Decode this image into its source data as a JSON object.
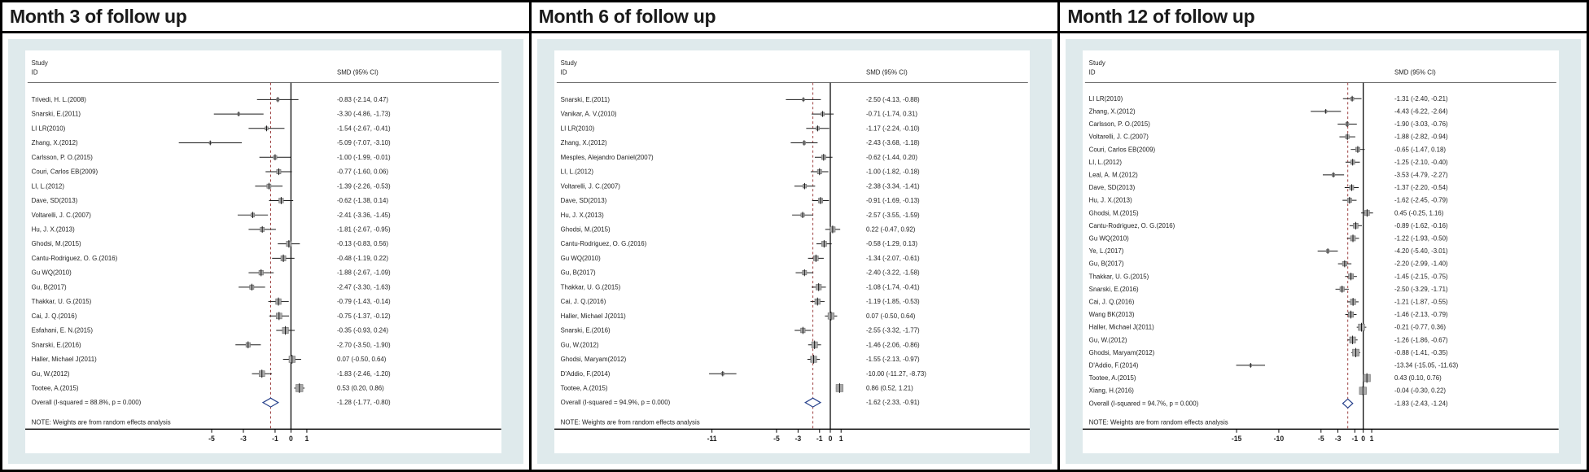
{
  "colors": {
    "panel_bg": "#dfeaec",
    "plot_bg": "#ffffff",
    "marker_fill": "#a9a9a9",
    "marker_edge": "#6f6f6f",
    "ci_line": "#1a1a1a",
    "null_line": "#000000",
    "overall_dash": "#9b3b3b",
    "diamond": "#26408b",
    "text": "#1f1f1f",
    "border": "#000000"
  },
  "chart_data": [
    {
      "type": "scatter",
      "subtype": "forest_plot",
      "title": "Month 3 of follow up",
      "col_headers": {
        "study_line1": "Study",
        "study_line2": "ID",
        "effect": "SMD (95% CI)"
      },
      "note": "NOTE: Weights are from random effects analysis",
      "xlabel": "",
      "xlim": [
        -7.9,
        2.0
      ],
      "xticks": [
        -5,
        -3,
        -1,
        0,
        1
      ],
      "null_line": 0,
      "overall_line": -1.28,
      "studies": [
        {
          "id": "Trivedi, H. L.(2008)",
          "smd": -0.83,
          "ci": [
            -2.14,
            0.47
          ],
          "label": "-0.83 (-2.14, 0.47)"
        },
        {
          "id": "Snarski, E.(2011)",
          "smd": -3.3,
          "ci": [
            -4.86,
            -1.73
          ],
          "label": "-3.30 (-4.86, -1.73)"
        },
        {
          "id": "LI LR(2010)",
          "smd": -1.54,
          "ci": [
            -2.67,
            -0.41
          ],
          "label": "-1.54 (-2.67, -0.41)"
        },
        {
          "id": "Zhang, X.(2012)",
          "smd": -5.09,
          "ci": [
            -7.07,
            -3.1
          ],
          "label": "-5.09 (-7.07, -3.10)"
        },
        {
          "id": "Carlsson, P. O.(2015)",
          "smd": -1.0,
          "ci": [
            -1.99,
            -0.01
          ],
          "label": "-1.00 (-1.99, -0.01)"
        },
        {
          "id": "Couri, Carlos EB(2009)",
          "smd": -0.77,
          "ci": [
            -1.6,
            0.06
          ],
          "label": "-0.77 (-1.60, 0.06)"
        },
        {
          "id": "LI, L.(2012)",
          "smd": -1.39,
          "ci": [
            -2.26,
            -0.53
          ],
          "label": "-1.39 (-2.26, -0.53)"
        },
        {
          "id": "Dave, SD(2013)",
          "smd": -0.62,
          "ci": [
            -1.38,
            0.14
          ],
          "label": "-0.62 (-1.38, 0.14)"
        },
        {
          "id": "Voltarelli, J. C.(2007)",
          "smd": -2.41,
          "ci": [
            -3.36,
            -1.45
          ],
          "label": "-2.41 (-3.36, -1.45)"
        },
        {
          "id": "Hu, J. X.(2013)",
          "smd": -1.81,
          "ci": [
            -2.67,
            -0.95
          ],
          "label": "-1.81 (-2.67, -0.95)"
        },
        {
          "id": "Ghodsi, M.(2015)",
          "smd": -0.13,
          "ci": [
            -0.83,
            0.56
          ],
          "label": "-0.13 (-0.83, 0.56)"
        },
        {
          "id": "Cantu-Rodriguez, O. G.(2016)",
          "smd": -0.48,
          "ci": [
            -1.19,
            0.22
          ],
          "label": "-0.48 (-1.19, 0.22)"
        },
        {
          "id": "Gu WQ(2010)",
          "smd": -1.88,
          "ci": [
            -2.67,
            -1.09
          ],
          "label": "-1.88 (-2.67, -1.09)"
        },
        {
          "id": "Gu, B(2017)",
          "smd": -2.47,
          "ci": [
            -3.3,
            -1.63
          ],
          "label": "-2.47 (-3.30, -1.63)"
        },
        {
          "id": "Thakkar, U. G.(2015)",
          "smd": -0.79,
          "ci": [
            -1.43,
            -0.14
          ],
          "label": "-0.79 (-1.43, -0.14)"
        },
        {
          "id": "Cai, J. Q.(2016)",
          "smd": -0.75,
          "ci": [
            -1.37,
            -0.12
          ],
          "label": "-0.75 (-1.37, -0.12)"
        },
        {
          "id": "Esfahani, E. N.(2015)",
          "smd": -0.35,
          "ci": [
            -0.93,
            0.24
          ],
          "label": "-0.35 (-0.93, 0.24)"
        },
        {
          "id": "Snarski, E.(2016)",
          "smd": -2.7,
          "ci": [
            -3.5,
            -1.9
          ],
          "label": "-2.70 (-3.50, -1.90)"
        },
        {
          "id": "Haller, Michael J(2011)",
          "smd": 0.07,
          "ci": [
            -0.5,
            0.64
          ],
          "label": "0.07 (-0.50, 0.64)"
        },
        {
          "id": "Gu, W.(2012)",
          "smd": -1.83,
          "ci": [
            -2.46,
            -1.2
          ],
          "label": "-1.83 (-2.46, -1.20)"
        },
        {
          "id": "Tootee, A.(2015)",
          "smd": 0.53,
          "ci": [
            0.2,
            0.86
          ],
          "label": "0.53 (0.20, 0.86)"
        }
      ],
      "overall": {
        "id": "Overall  (I-squared = 88.8%, p = 0.000)",
        "smd": -1.28,
        "ci": [
          -1.77,
          -0.8
        ],
        "label": "-1.28 (-1.77, -0.80)"
      }
    },
    {
      "type": "scatter",
      "subtype": "forest_plot",
      "title": "Month 6 of follow up",
      "col_headers": {
        "study_line1": "Study",
        "study_line2": "ID",
        "effect": "SMD (95% CI)"
      },
      "note": "NOTE: Weights are from random effects analysis",
      "xlabel": "",
      "xlim": [
        -12.6,
        2.0
      ],
      "xticks": [
        -11,
        -5,
        -3,
        -1,
        0,
        1
      ],
      "null_line": 0,
      "overall_line": -1.62,
      "studies": [
        {
          "id": "Snarski, E.(2011)",
          "smd": -2.5,
          "ci": [
            -4.13,
            -0.88
          ],
          "label": "-2.50 (-4.13, -0.88)"
        },
        {
          "id": "Vanikar, A. V.(2010)",
          "smd": -0.71,
          "ci": [
            -1.74,
            0.31
          ],
          "label": "-0.71 (-1.74, 0.31)"
        },
        {
          "id": "LI LR(2010)",
          "smd": -1.17,
          "ci": [
            -2.24,
            -0.1
          ],
          "label": "-1.17 (-2.24, -0.10)"
        },
        {
          "id": "Zhang, X.(2012)",
          "smd": -2.43,
          "ci": [
            -3.68,
            -1.18
          ],
          "label": "-2.43 (-3.68, -1.18)"
        },
        {
          "id": "Mesples, Alejandro Daniel(2007)",
          "smd": -0.62,
          "ci": [
            -1.44,
            0.2
          ],
          "label": "-0.62 (-1.44, 0.20)"
        },
        {
          "id": "LI, L.(2012)",
          "smd": -1.0,
          "ci": [
            -1.82,
            -0.18
          ],
          "label": "-1.00 (-1.82, -0.18)"
        },
        {
          "id": "Voltarelli, J. C.(2007)",
          "smd": -2.38,
          "ci": [
            -3.34,
            -1.41
          ],
          "label": "-2.38 (-3.34, -1.41)"
        },
        {
          "id": "Dave, SD(2013)",
          "smd": -0.91,
          "ci": [
            -1.69,
            -0.13
          ],
          "label": "-0.91 (-1.69, -0.13)"
        },
        {
          "id": "Hu, J. X.(2013)",
          "smd": -2.57,
          "ci": [
            -3.55,
            -1.59
          ],
          "label": "-2.57 (-3.55, -1.59)"
        },
        {
          "id": "Ghodsi, M.(2015)",
          "smd": 0.22,
          "ci": [
            -0.47,
            0.92
          ],
          "label": "0.22 (-0.47, 0.92)"
        },
        {
          "id": "Cantu-Rodriguez, O. G.(2016)",
          "smd": -0.58,
          "ci": [
            -1.29,
            0.13
          ],
          "label": "-0.58 (-1.29, 0.13)"
        },
        {
          "id": "Gu WQ(2010)",
          "smd": -1.34,
          "ci": [
            -2.07,
            -0.61
          ],
          "label": "-1.34 (-2.07, -0.61)"
        },
        {
          "id": "Gu, B(2017)",
          "smd": -2.4,
          "ci": [
            -3.22,
            -1.58
          ],
          "label": "-2.40 (-3.22, -1.58)"
        },
        {
          "id": "Thakkar, U. G.(2015)",
          "smd": -1.08,
          "ci": [
            -1.74,
            -0.41
          ],
          "label": "-1.08 (-1.74, -0.41)"
        },
        {
          "id": "Cai, J. Q.(2016)",
          "smd": -1.19,
          "ci": [
            -1.85,
            -0.53
          ],
          "label": "-1.19 (-1.85, -0.53)"
        },
        {
          "id": "Haller, Michael J(2011)",
          "smd": 0.07,
          "ci": [
            -0.5,
            0.64
          ],
          "label": "0.07 (-0.50, 0.64)"
        },
        {
          "id": "Snarski, E.(2016)",
          "smd": -2.55,
          "ci": [
            -3.32,
            -1.77
          ],
          "label": "-2.55 (-3.32, -1.77)"
        },
        {
          "id": "Gu, W.(2012)",
          "smd": -1.46,
          "ci": [
            -2.06,
            -0.86
          ],
          "label": "-1.46 (-2.06, -0.86)"
        },
        {
          "id": "Ghodsi, Maryam(2012)",
          "smd": -1.55,
          "ci": [
            -2.13,
            -0.97
          ],
          "label": "-1.55 (-2.13, -0.97)"
        },
        {
          "id": "D'Addio, F.(2014)",
          "smd": -10.0,
          "ci": [
            -11.27,
            -8.73
          ],
          "label": "-10.00 (-11.27, -8.73)"
        },
        {
          "id": "Tootee, A.(2015)",
          "smd": 0.86,
          "ci": [
            0.52,
            1.21
          ],
          "label": "0.86 (0.52, 1.21)"
        }
      ],
      "overall": {
        "id": "Overall  (I-squared = 94.9%, p = 0.000)",
        "smd": -1.62,
        "ci": [
          -2.33,
          -0.91
        ],
        "label": "-1.62 (-2.33, -0.91)"
      }
    },
    {
      "type": "scatter",
      "subtype": "forest_plot",
      "title": "Month 12 of follow up",
      "col_headers": {
        "study_line1": "Study",
        "study_line2": "ID",
        "effect": "SMD (95% CI)"
      },
      "note": "NOTE: Weights are from random effects analysis",
      "xlabel": "",
      "xlim": [
        -16.6,
        2.0
      ],
      "xticks": [
        -15,
        -10,
        -5,
        -3,
        -1,
        0,
        1
      ],
      "null_line": 0,
      "overall_line": -1.83,
      "studies": [
        {
          "id": "LI LR(2010)",
          "smd": -1.31,
          "ci": [
            -2.4,
            -0.21
          ],
          "label": "-1.31 (-2.40, -0.21)"
        },
        {
          "id": "Zhang, X.(2012)",
          "smd": -4.43,
          "ci": [
            -6.22,
            -2.64
          ],
          "label": "-4.43 (-6.22, -2.64)"
        },
        {
          "id": "Carlsson, P. O.(2015)",
          "smd": -1.9,
          "ci": [
            -3.03,
            -0.76
          ],
          "label": "-1.90 (-3.03, -0.76)"
        },
        {
          "id": "Voltarelli, J. C.(2007)",
          "smd": -1.88,
          "ci": [
            -2.82,
            -0.94
          ],
          "label": "-1.88 (-2.82, -0.94)"
        },
        {
          "id": "Couri, Carlos EB(2009)",
          "smd": -0.65,
          "ci": [
            -1.47,
            0.18
          ],
          "label": "-0.65 (-1.47, 0.18)"
        },
        {
          "id": "LI, L.(2012)",
          "smd": -1.25,
          "ci": [
            -2.1,
            -0.4
          ],
          "label": "-1.25 (-2.10, -0.40)"
        },
        {
          "id": "Leal, A. M.(2012)",
          "smd": -3.53,
          "ci": [
            -4.79,
            -2.27
          ],
          "label": "-3.53 (-4.79, -2.27)"
        },
        {
          "id": "Dave, SD(2013)",
          "smd": -1.37,
          "ci": [
            -2.2,
            -0.54
          ],
          "label": "-1.37 (-2.20, -0.54)"
        },
        {
          "id": "Hu, J. X.(2013)",
          "smd": -1.62,
          "ci": [
            -2.45,
            -0.79
          ],
          "label": "-1.62 (-2.45, -0.79)"
        },
        {
          "id": "Ghodsi, M.(2015)",
          "smd": 0.45,
          "ci": [
            -0.25,
            1.16
          ],
          "label": "0.45 (-0.25, 1.16)"
        },
        {
          "id": "Cantu-Rodriguez, O. G.(2016)",
          "smd": -0.89,
          "ci": [
            -1.62,
            -0.16
          ],
          "label": "-0.89 (-1.62, -0.16)"
        },
        {
          "id": "Gu WQ(2010)",
          "smd": -1.22,
          "ci": [
            -1.93,
            -0.5
          ],
          "label": "-1.22 (-1.93, -0.50)"
        },
        {
          "id": "Ye, L.(2017)",
          "smd": -4.2,
          "ci": [
            -5.4,
            -3.01
          ],
          "label": "-4.20 (-5.40, -3.01)"
        },
        {
          "id": "Gu, B(2017)",
          "smd": -2.2,
          "ci": [
            -2.99,
            -1.4
          ],
          "label": "-2.20 (-2.99, -1.40)"
        },
        {
          "id": "Thakkar, U. G.(2015)",
          "smd": -1.45,
          "ci": [
            -2.15,
            -0.75
          ],
          "label": "-1.45 (-2.15, -0.75)"
        },
        {
          "id": "Snarski, E.(2016)",
          "smd": -2.5,
          "ci": [
            -3.29,
            -1.71
          ],
          "label": "-2.50 (-3.29, -1.71)"
        },
        {
          "id": "Cai, J. Q.(2016)",
          "smd": -1.21,
          "ci": [
            -1.87,
            -0.55
          ],
          "label": "-1.21 (-1.87, -0.55)"
        },
        {
          "id": "Wang BK(2013)",
          "smd": -1.46,
          "ci": [
            -2.13,
            -0.79
          ],
          "label": "-1.46 (-2.13, -0.79)"
        },
        {
          "id": "Haller, Michael J(2011)",
          "smd": -0.21,
          "ci": [
            -0.77,
            0.36
          ],
          "label": "-0.21 (-0.77, 0.36)"
        },
        {
          "id": "Gu, W.(2012)",
          "smd": -1.26,
          "ci": [
            -1.86,
            -0.67
          ],
          "label": "-1.26 (-1.86, -0.67)"
        },
        {
          "id": "Ghodsi, Maryam(2012)",
          "smd": -0.88,
          "ci": [
            -1.41,
            -0.35
          ],
          "label": "-0.88 (-1.41, -0.35)"
        },
        {
          "id": "D'Addio, F.(2014)",
          "smd": -13.34,
          "ci": [
            -15.05,
            -11.63
          ],
          "label": "-13.34 (-15.05, -11.63)"
        },
        {
          "id": "Tootee, A.(2015)",
          "smd": 0.43,
          "ci": [
            0.1,
            0.76
          ],
          "label": "0.43 (0.10, 0.76)"
        },
        {
          "id": "Xiang, H.(2016)",
          "smd": -0.04,
          "ci": [
            -0.3,
            0.22
          ],
          "label": "-0.04 (-0.30, 0.22)"
        }
      ],
      "overall": {
        "id": "Overall  (I-squared = 94.7%, p = 0.000)",
        "smd": -1.83,
        "ci": [
          -2.43,
          -1.24
        ],
        "label": "-1.83 (-2.43, -1.24)"
      }
    }
  ]
}
